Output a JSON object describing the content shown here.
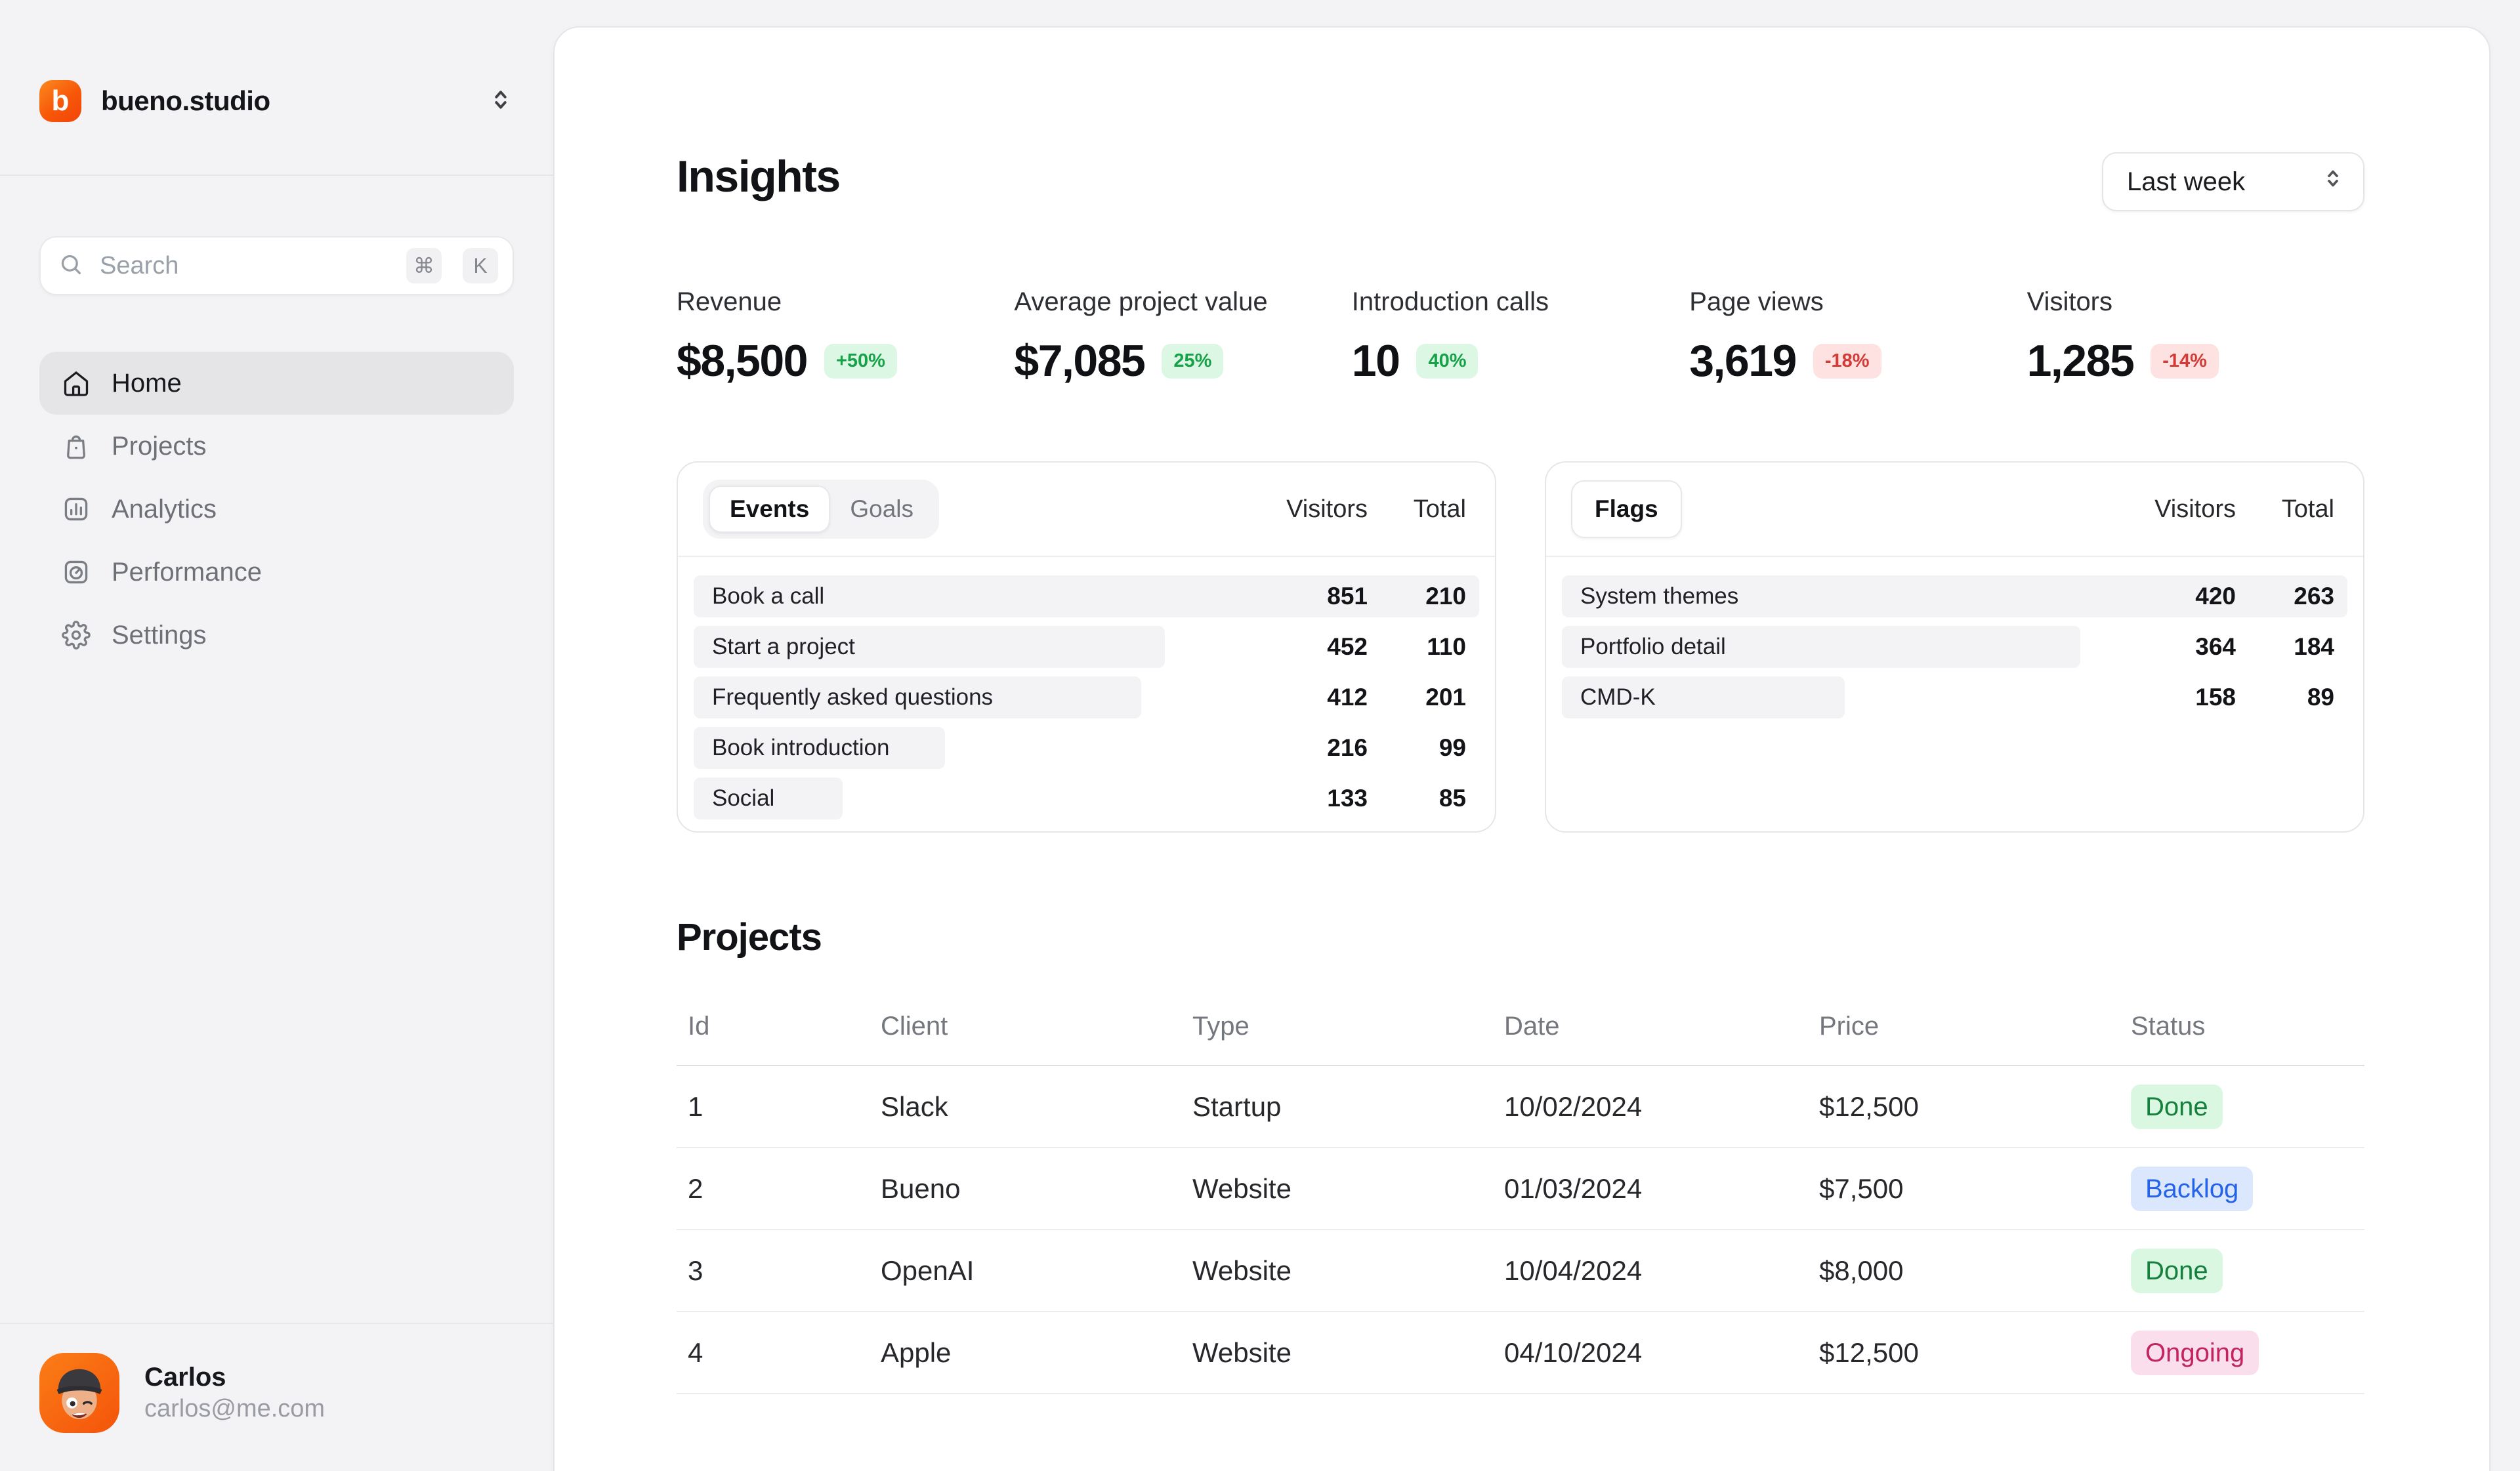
{
  "sidebar": {
    "brand": {
      "name": "bueno.studio",
      "logo_letter": "b"
    },
    "search": {
      "placeholder": "Search",
      "keys": [
        "⌘",
        "K"
      ]
    },
    "nav": [
      {
        "label": "Home",
        "icon": "home",
        "state": "active"
      },
      {
        "label": "Projects",
        "icon": "bag",
        "state": "default"
      },
      {
        "label": "Analytics",
        "icon": "bar-chart",
        "state": "default"
      },
      {
        "label": "Performance",
        "icon": "gauge",
        "state": "default"
      },
      {
        "label": "Settings",
        "icon": "gear",
        "state": "default"
      }
    ],
    "user": {
      "name": "Carlos",
      "email": "carlos@me.com"
    }
  },
  "header": {
    "title": "Insights",
    "range_selector": "Last week"
  },
  "kpis": [
    {
      "label": "Revenue",
      "value": "$8,500",
      "delta": "+50%",
      "trend": "up"
    },
    {
      "label": "Average project value",
      "value": "$7,085",
      "delta": "25%",
      "trend": "up"
    },
    {
      "label": "Introduction calls",
      "value": "10",
      "delta": "40%",
      "trend": "up"
    },
    {
      "label": "Page views",
      "value": "3,619",
      "delta": "-18%",
      "trend": "down"
    },
    {
      "label": "Visitors",
      "value": "1,285",
      "delta": "-14%",
      "trend": "down"
    }
  ],
  "chart_data": [
    {
      "type": "bar",
      "title": "Events",
      "tabs": [
        "Events",
        "Goals"
      ],
      "active_tab": "Events",
      "columns": [
        "Visitors",
        "Total"
      ],
      "rows": [
        {
          "label": "Book a call",
          "visitors": 851,
          "total": 210,
          "bar_pct": 100
        },
        {
          "label": "Start a project",
          "visitors": 452,
          "total": 110,
          "bar_pct": 60
        },
        {
          "label": "Frequently asked questions",
          "visitors": 412,
          "total": 201,
          "bar_pct": 57
        },
        {
          "label": "Book introduction",
          "visitors": 216,
          "total": 99,
          "bar_pct": 32
        },
        {
          "label": "Social",
          "visitors": 133,
          "total": 85,
          "bar_pct": 19
        }
      ]
    },
    {
      "type": "bar",
      "title": "Flags",
      "tabs": [
        "Flags"
      ],
      "active_tab": "Flags",
      "columns": [
        "Visitors",
        "Total"
      ],
      "rows": [
        {
          "label": "System themes",
          "visitors": 420,
          "total": 263,
          "bar_pct": 100
        },
        {
          "label": "Portfolio detail",
          "visitors": 364,
          "total": 184,
          "bar_pct": 66
        },
        {
          "label": "CMD-K",
          "visitors": 158,
          "total": 89,
          "bar_pct": 36
        }
      ]
    }
  ],
  "projects": {
    "title": "Projects",
    "columns": [
      "Id",
      "Client",
      "Type",
      "Date",
      "Price",
      "Status"
    ],
    "rows": [
      {
        "id": "1",
        "client": "Slack",
        "type": "Startup",
        "date": "10/02/2024",
        "price": "$12,500",
        "status": "Done",
        "status_variant": "green"
      },
      {
        "id": "2",
        "client": "Bueno",
        "type": "Website",
        "date": "01/03/2024",
        "price": "$7,500",
        "status": "Backlog",
        "status_variant": "blue"
      },
      {
        "id": "3",
        "client": "OpenAI",
        "type": "Website",
        "date": "10/04/2024",
        "price": "$8,000",
        "status": "Done",
        "status_variant": "green"
      },
      {
        "id": "4",
        "client": "Apple",
        "type": "Website",
        "date": "04/10/2024",
        "price": "$12,500",
        "status": "Ongoing",
        "status_variant": "pink"
      }
    ]
  },
  "colors": {
    "accent_orange": "#f75708",
    "positive_badge_bg": "#dcf8e4",
    "positive_badge_text": "#17a24a",
    "negative_badge_bg": "#fde2e1",
    "negative_badge_text": "#d23b36",
    "status_done_bg": "#d9f7e1",
    "status_done_text": "#157f3d",
    "status_backlog_bg": "#dbe7fd",
    "status_backlog_text": "#2563eb",
    "status_ongoing_bg": "#fbdeec",
    "status_ongoing_text": "#c22460",
    "sidebar_bg": "#f3f3f5",
    "card_bg": "#ffffff",
    "row_bar_bg": "#f3f3f5"
  }
}
